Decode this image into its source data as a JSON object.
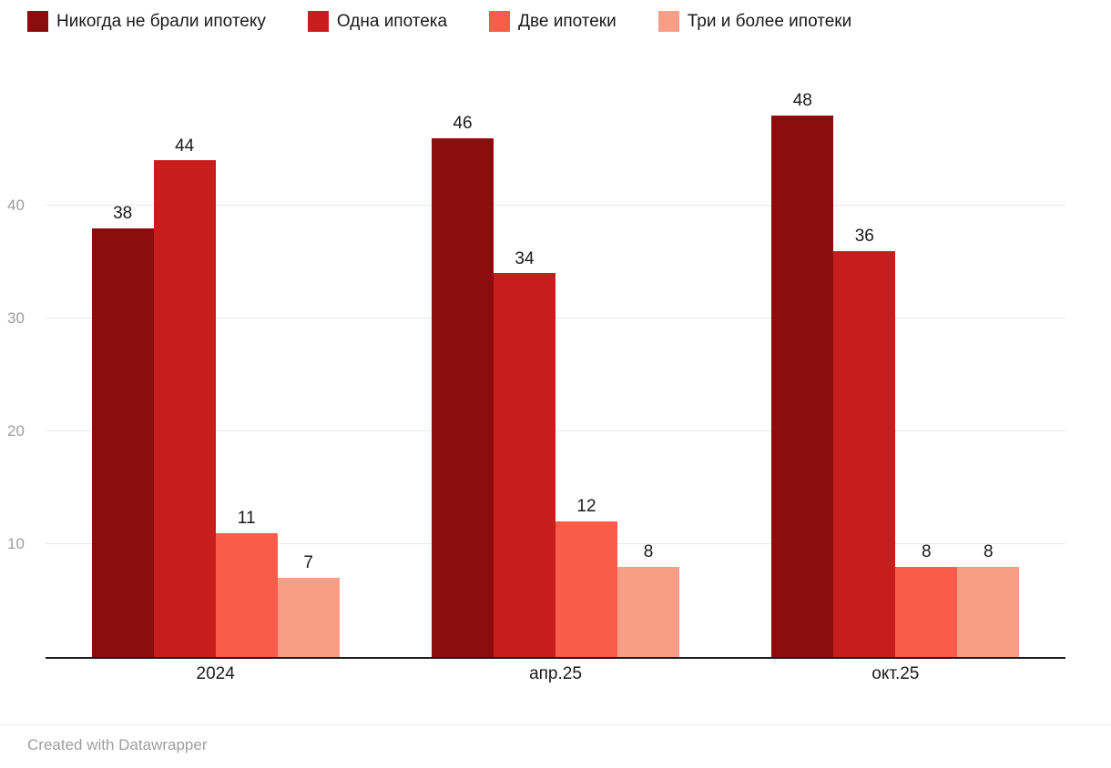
{
  "chart_data": {
    "type": "bar",
    "title": "",
    "categories": [
      "2024",
      "апр.25",
      "окт.25"
    ],
    "series": [
      {
        "name": "Никогда не брали ипотеку",
        "color": "#8b0d0d",
        "values": [
          38,
          46,
          48
        ]
      },
      {
        "name": "Одна ипотека",
        "color": "#c71e1d",
        "values": [
          44,
          34,
          36
        ]
      },
      {
        "name": "Две ипотеки",
        "color": "#fa5c4c",
        "values": [
          11,
          12,
          8
        ]
      },
      {
        "name": "Три и более ипотеки",
        "color": "#f99e86",
        "values": [
          7,
          8,
          8
        ]
      }
    ],
    "xlabel": "",
    "ylabel": "",
    "ylim": [
      0,
      50
    ],
    "yticks": [
      10,
      20,
      30,
      40
    ],
    "grid": true,
    "legend_position": "top",
    "value_labels": true
  },
  "colors": {
    "axis": "#1a1a1a",
    "gridline": "#e8e8e8",
    "tick_text": "#9d9d9d",
    "label_text": "#1a1a1a"
  },
  "footer": {
    "credit": "Created with Datawrapper"
  }
}
